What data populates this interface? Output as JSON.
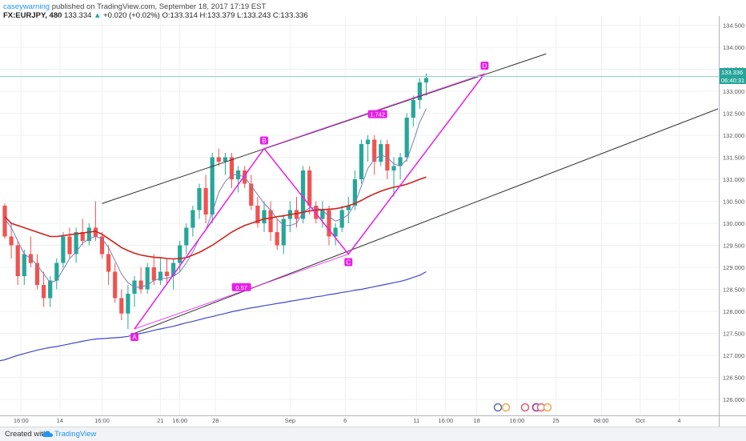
{
  "header": {
    "author": "caseywarning",
    "published": "published on TradingView.com, September 18, 2017 17:19 EST"
  },
  "ohlc": {
    "symbol": "FX:EURJPY, 480",
    "last": "133.334",
    "change_arrow": "▲",
    "change": "+0.020 (+0.02%)",
    "o_label": "O:",
    "o": "133.314",
    "h_label": "H:",
    "h": "133.379",
    "l_label": "L:",
    "l": "133.243",
    "c_label": "C:",
    "c": "133.336"
  },
  "price_scale": {
    "current_price": "133.336",
    "countdown": "06:40:31"
  },
  "footer": {
    "created_with": "Created with",
    "brand": "TradingView"
  },
  "colors": {
    "up": "#26a69a",
    "down": "#ef5350",
    "ma_fast": "#7b7fb8",
    "ma_mid": "#d0211d",
    "ma_slow": "#3f48cc",
    "pattern": "#e91ee9",
    "channel": "#333333",
    "price_line": "#8ad4c8"
  },
  "chart_data": {
    "type": "candlestick",
    "symbol": "FX:EURJPY",
    "timeframe": "480",
    "ylim": [
      125.75,
      134.6
    ],
    "y_ticks": [
      "126.000",
      "126.500",
      "127.000",
      "127.500",
      "128.000",
      "128.500",
      "129.000",
      "129.500",
      "130.000",
      "130.500",
      "131.000",
      "131.500",
      "132.000",
      "132.500",
      "133.000",
      "133.500",
      "134.000",
      "134.500"
    ],
    "x_ticks": [
      {
        "label": "16:00",
        "i": 2.5
      },
      {
        "label": "14",
        "i": 8.5
      },
      {
        "label": "16:00",
        "i": 15
      },
      {
        "label": "21",
        "i": 24
      },
      {
        "label": "16:00",
        "i": 27
      },
      {
        "label": "28",
        "i": 32.5
      },
      {
        "label": "Sep",
        "i": 44
      },
      {
        "label": "6",
        "i": 52.5
      },
      {
        "label": "11",
        "i": 63.5
      },
      {
        "label": "16:00",
        "i": 68
      },
      {
        "label": "18",
        "i": 72.8
      },
      {
        "label": "16:00",
        "i": 79
      },
      {
        "label": "25",
        "i": 85
      },
      {
        "label": "08:00",
        "i": 92
      },
      {
        "label": "Oct",
        "i": 98
      },
      {
        "label": "4",
        "i": 104
      }
    ],
    "candles": [
      [
        130.4,
        130.45,
        129.65,
        129.7
      ],
      [
        129.7,
        130.0,
        129.2,
        129.5
      ],
      [
        129.5,
        129.6,
        128.6,
        128.8
      ],
      [
        128.8,
        129.4,
        128.6,
        129.3
      ],
      [
        129.3,
        129.7,
        129.0,
        129.1
      ],
      [
        129.1,
        129.3,
        128.5,
        128.6
      ],
      [
        128.6,
        128.9,
        128.1,
        128.3
      ],
      [
        128.3,
        128.8,
        128.1,
        128.7
      ],
      [
        128.7,
        129.2,
        128.5,
        129.1
      ],
      [
        129.1,
        129.8,
        129.0,
        129.7
      ],
      [
        129.7,
        129.9,
        129.2,
        129.3
      ],
      [
        129.3,
        129.9,
        129.1,
        129.8
      ],
      [
        129.8,
        130.1,
        129.5,
        129.6
      ],
      [
        129.6,
        130.0,
        129.5,
        129.9
      ],
      [
        129.9,
        130.5,
        129.6,
        129.7
      ],
      [
        129.7,
        129.8,
        129.2,
        129.3
      ],
      [
        129.3,
        129.5,
        128.6,
        128.9
      ],
      [
        128.9,
        129.1,
        128.2,
        128.3
      ],
      [
        128.3,
        128.5,
        127.8,
        127.95
      ],
      [
        127.95,
        128.6,
        127.6,
        128.4
      ],
      [
        128.4,
        128.8,
        128.1,
        128.7
      ],
      [
        128.7,
        129.0,
        128.4,
        128.5
      ],
      [
        128.5,
        129.1,
        128.4,
        129.0
      ],
      [
        129.0,
        129.3,
        128.6,
        128.7
      ],
      [
        128.7,
        129.2,
        128.6,
        128.9
      ],
      [
        128.9,
        129.2,
        128.6,
        128.8
      ],
      [
        128.8,
        129.2,
        128.5,
        129.1
      ],
      [
        129.1,
        129.6,
        128.9,
        129.5
      ],
      [
        129.5,
        130.0,
        129.3,
        129.9
      ],
      [
        129.9,
        130.4,
        129.7,
        130.3
      ],
      [
        130.3,
        130.9,
        130.1,
        130.8
      ],
      [
        130.8,
        131.1,
        130.0,
        130.2
      ],
      [
        130.2,
        131.6,
        130.0,
        131.5
      ],
      [
        131.5,
        131.7,
        131.3,
        131.4
      ],
      [
        131.4,
        131.6,
        131.1,
        131.5
      ],
      [
        131.5,
        131.6,
        130.8,
        131.0
      ],
      [
        131.0,
        131.3,
        130.7,
        131.2
      ],
      [
        131.2,
        131.3,
        130.8,
        130.9
      ],
      [
        130.9,
        131.1,
        130.3,
        130.4
      ],
      [
        130.4,
        130.6,
        129.9,
        130.0
      ],
      [
        130.0,
        130.5,
        129.8,
        130.3
      ],
      [
        130.3,
        130.5,
        129.6,
        129.8
      ],
      [
        129.8,
        130.1,
        129.4,
        129.5
      ],
      [
        129.5,
        130.2,
        129.3,
        130.1
      ],
      [
        130.1,
        130.5,
        129.8,
        130.3
      ],
      [
        130.3,
        130.6,
        129.9,
        130.1
      ],
      [
        130.1,
        131.3,
        130.0,
        131.2
      ],
      [
        131.2,
        131.3,
        130.2,
        130.4
      ],
      [
        130.4,
        130.5,
        130.0,
        130.1
      ],
      [
        130.1,
        130.5,
        129.9,
        130.3
      ],
      [
        130.3,
        130.4,
        129.5,
        129.7
      ],
      [
        129.7,
        130.0,
        129.5,
        129.9
      ],
      [
        129.9,
        130.4,
        129.8,
        130.3
      ],
      [
        130.3,
        130.6,
        130.0,
        130.4
      ],
      [
        130.4,
        131.2,
        130.3,
        131.0
      ],
      [
        131.0,
        131.9,
        130.9,
        131.8
      ],
      [
        131.8,
        132.0,
        131.4,
        131.9
      ],
      [
        131.9,
        132.0,
        131.1,
        131.4
      ],
      [
        131.4,
        131.9,
        131.3,
        131.8
      ],
      [
        131.8,
        131.9,
        131.0,
        131.2
      ],
      [
        131.2,
        131.5,
        130.6,
        131.3
      ],
      [
        131.3,
        131.6,
        131.0,
        131.5
      ],
      [
        131.5,
        132.5,
        131.4,
        132.4
      ],
      [
        132.4,
        132.9,
        132.2,
        132.8
      ],
      [
        132.8,
        133.3,
        132.6,
        133.2
      ],
      [
        133.2,
        133.4,
        132.9,
        133.3
      ]
    ],
    "series": [
      {
        "values": [
          130.1,
          129.9,
          129.6,
          129.3,
          129.2,
          129.05,
          128.85,
          128.65,
          128.7,
          128.95,
          129.2,
          129.35,
          129.55,
          129.65,
          129.7,
          129.65,
          129.45,
          129.15,
          128.85,
          128.65,
          128.55,
          128.55,
          128.6,
          128.7,
          128.75,
          128.75,
          128.8,
          128.9,
          129.1,
          129.35,
          129.65,
          129.85,
          130.25,
          130.7,
          130.95,
          131.1,
          131.1,
          131.05,
          130.85,
          130.65,
          130.45,
          130.3,
          130.1,
          129.95,
          129.95,
          130.0,
          130.25,
          130.35,
          130.35,
          130.3,
          130.15,
          130.05,
          130.1,
          130.2,
          130.45,
          130.85,
          131.25,
          131.45,
          131.55,
          131.5,
          131.35,
          131.3,
          131.45,
          131.85,
          132.3,
          132.6
        ]
      },
      {
        "values": [
          130.15,
          130.0,
          129.95,
          129.9,
          129.85,
          129.8,
          129.75,
          129.7,
          129.7,
          129.72,
          129.74,
          129.76,
          129.78,
          129.8,
          129.82,
          129.75,
          129.65,
          129.55,
          129.45,
          129.38,
          129.32,
          129.28,
          129.25,
          129.23,
          129.22,
          129.2,
          129.19,
          129.2,
          129.22,
          129.28,
          129.34,
          129.42,
          129.5,
          129.6,
          129.7,
          129.8,
          129.88,
          129.95,
          130.0,
          130.05,
          130.1,
          130.12,
          130.15,
          130.17,
          130.2,
          130.22,
          130.25,
          130.28,
          130.3,
          130.31,
          130.32,
          130.33,
          130.36,
          130.4,
          130.45,
          130.52,
          130.6,
          130.67,
          130.73,
          130.78,
          130.82,
          130.85,
          130.89,
          130.94,
          131.0,
          131.05
        ]
      },
      {
        "values": [
          126.9,
          126.95,
          127.0,
          127.04,
          127.08,
          127.12,
          127.15,
          127.18,
          127.2,
          127.23,
          127.26,
          127.29,
          127.32,
          127.35,
          127.37,
          127.38,
          127.39,
          127.4,
          127.41,
          127.43,
          127.47,
          127.5,
          127.53,
          127.57,
          127.6,
          127.63,
          127.66,
          127.7,
          127.74,
          127.77,
          127.81,
          127.85,
          127.88,
          127.92,
          127.95,
          127.99,
          128.02,
          128.05,
          128.08,
          128.1,
          128.13,
          128.15,
          128.18,
          128.2,
          128.23,
          128.25,
          128.28,
          128.3,
          128.33,
          128.35,
          128.38,
          128.4,
          128.43,
          128.45,
          128.48,
          128.5,
          128.53,
          128.56,
          128.59,
          128.62,
          128.65,
          128.68,
          128.72,
          128.77,
          128.82,
          128.9
        ]
      }
    ],
    "pattern": {
      "points": [
        {
          "label": "A",
          "i": 20,
          "price": 127.6
        },
        {
          "label": "B",
          "i": 40,
          "price": 131.7
        },
        {
          "label": "C",
          "i": 53,
          "price": 129.3
        },
        {
          "label": "D",
          "i": 74,
          "price": 133.4
        }
      ],
      "ratios": [
        {
          "label": "0.57",
          "i": 36.5,
          "price": 128.55
        },
        {
          "label": "1.742",
          "i": 57.5,
          "price": 132.48
        }
      ]
    },
    "channel": {
      "upper": [
        {
          "i": 15,
          "price": 130.45
        },
        {
          "i": 83.5,
          "price": 133.85
        }
      ],
      "lower": [
        {
          "i": 20,
          "price": 127.5
        },
        {
          "i": 110,
          "price": 132.6
        }
      ]
    }
  }
}
